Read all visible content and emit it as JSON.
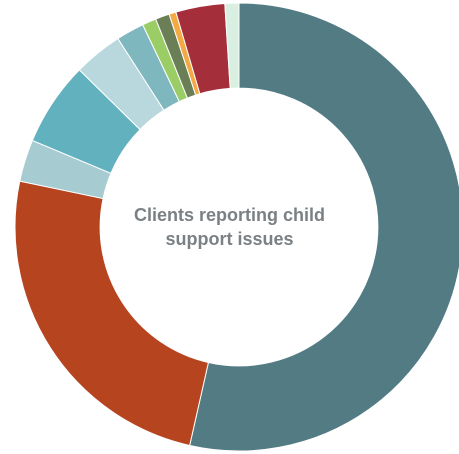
{
  "chart_data": {
    "type": "pie",
    "title": "Clients reporting child support issues",
    "values": [
      53.0,
      24.5,
      3.0,
      6.0,
      3.5,
      2.0,
      1.0,
      1.0,
      0.5,
      3.5,
      1.0
    ],
    "colors": [
      "#527B84",
      "#B6441F",
      "#A6CBD0",
      "#62B1BE",
      "#B8D8DD",
      "#7EB8BE",
      "#9ACD65",
      "#6B7F56",
      "#F3AA45",
      "#A52E3B",
      "#D9EFE2"
    ],
    "legend": "none",
    "inner_radius_ratio": 0.62
  },
  "center_text": {
    "line1": "Clients reporting child",
    "line2": "support issues"
  }
}
